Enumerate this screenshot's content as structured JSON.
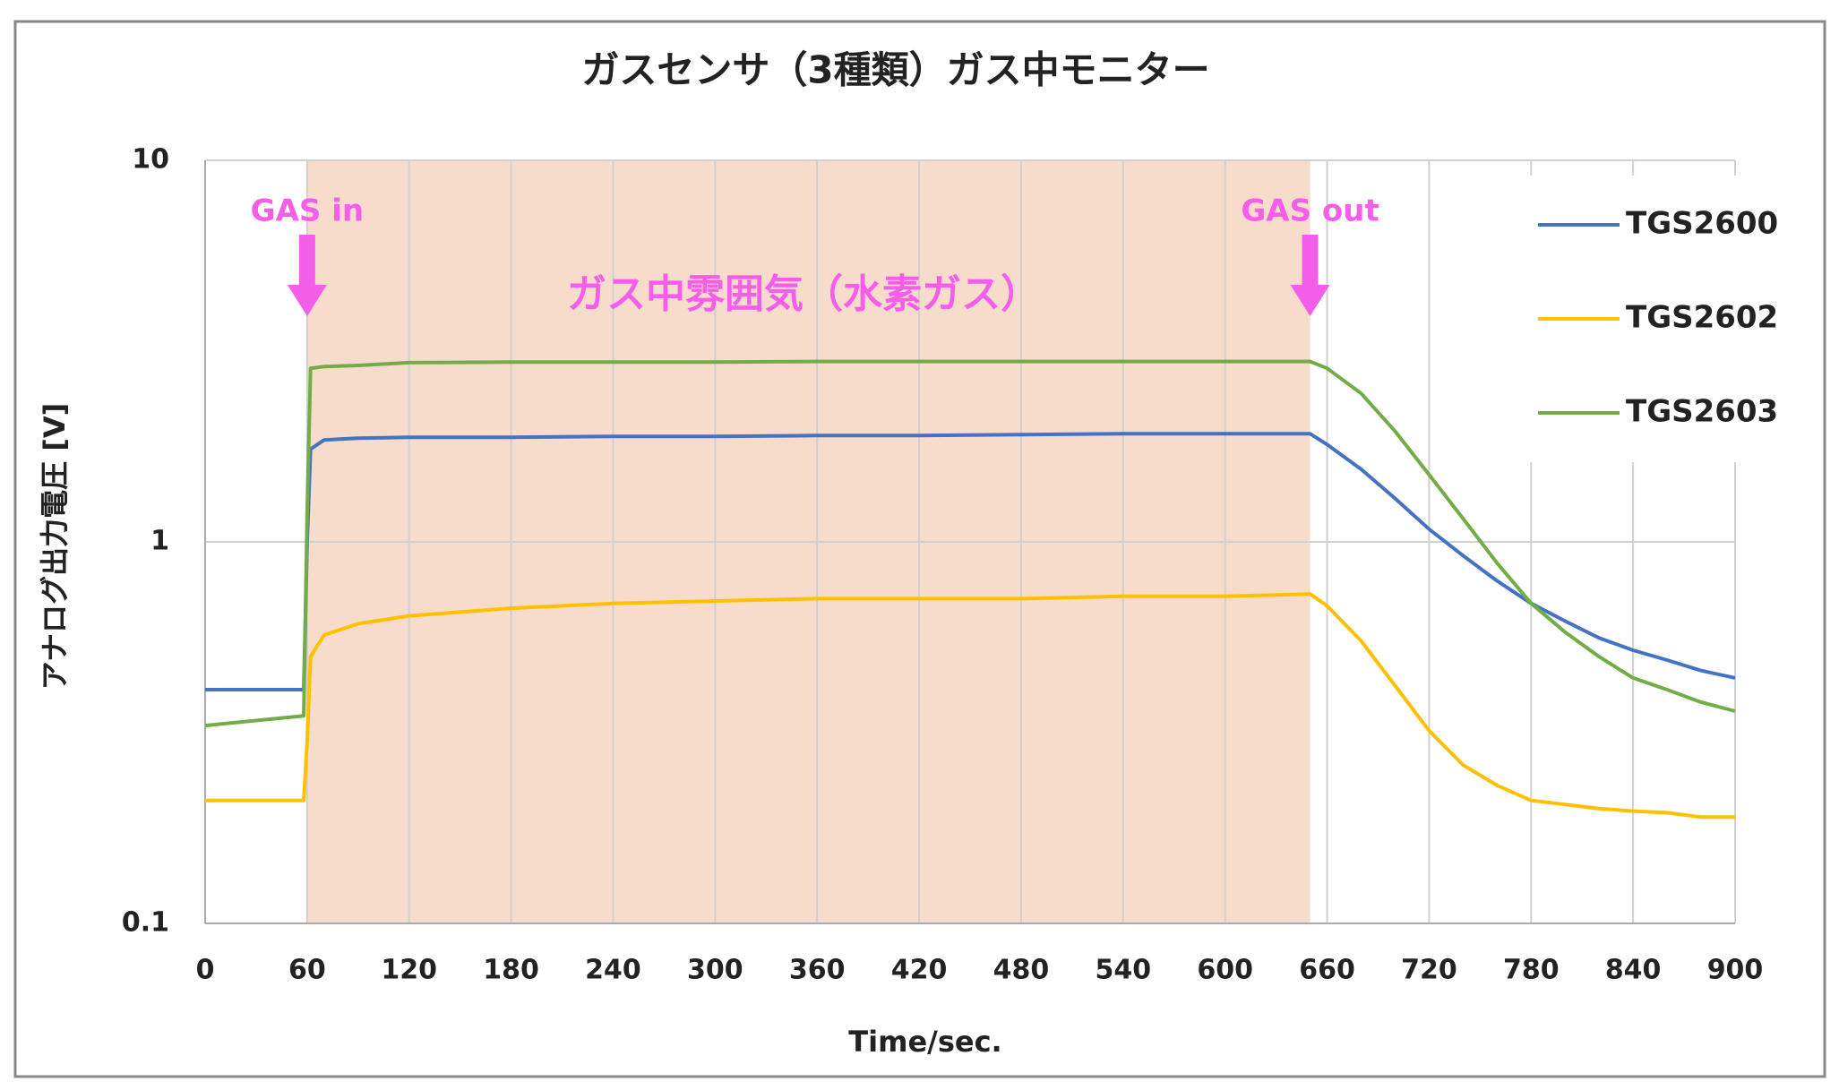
{
  "chart_data": {
    "type": "line",
    "title": "ガスセンサ（3種類）ガス中モニター",
    "x_label": "Time/sec.",
    "y_label": "アナログ出力電圧 [V]",
    "log_y": true,
    "grid": true,
    "legend_position": "upper right",
    "xlim": [
      0,
      900
    ],
    "xticks": [
      0,
      60,
      120,
      180,
      240,
      300,
      360,
      420,
      480,
      540,
      600,
      660,
      720,
      780,
      840,
      900
    ],
    "ylim": [
      0.1,
      10
    ],
    "yticks": [
      0.1,
      1,
      10
    ],
    "shaded_region": {
      "x": [
        60,
        650
      ],
      "color": "#f8dccb"
    },
    "annotations": [
      {
        "text": "GAS in",
        "x": 60,
        "arrow": true
      },
      {
        "text": "GAS out",
        "x": 650,
        "arrow": true
      },
      {
        "text": "ガス中雰囲気（水素ガス）",
        "x": 352,
        "arrow": false
      }
    ],
    "annotation_color": "#f55ee8",
    "x": [
      0,
      58,
      60,
      62,
      70,
      90,
      120,
      180,
      240,
      300,
      360,
      420,
      480,
      540,
      600,
      650,
      660,
      680,
      700,
      720,
      740,
      760,
      780,
      800,
      820,
      840,
      860,
      880,
      900
    ],
    "series": [
      {
        "name": "TGS2600",
        "color": "#4472c4",
        "values": [
          0.41,
          0.41,
          1.0,
          1.75,
          1.85,
          1.87,
          1.88,
          1.88,
          1.89,
          1.89,
          1.9,
          1.9,
          1.91,
          1.92,
          1.92,
          1.92,
          1.8,
          1.55,
          1.3,
          1.08,
          0.92,
          0.79,
          0.69,
          0.62,
          0.56,
          0.52,
          0.49,
          0.46,
          0.44
        ]
      },
      {
        "name": "TGS2602",
        "color": "#ffc000",
        "values": [
          0.21,
          0.21,
          0.3,
          0.5,
          0.57,
          0.61,
          0.64,
          0.67,
          0.69,
          0.7,
          0.71,
          0.71,
          0.71,
          0.72,
          0.72,
          0.73,
          0.68,
          0.55,
          0.42,
          0.32,
          0.26,
          0.23,
          0.21,
          0.205,
          0.2,
          0.197,
          0.195,
          0.19,
          0.19
        ]
      },
      {
        "name": "TGS2603",
        "color": "#70ad47",
        "values": [
          0.33,
          0.35,
          1.2,
          2.85,
          2.88,
          2.9,
          2.95,
          2.96,
          2.96,
          2.96,
          2.97,
          2.97,
          2.97,
          2.97,
          2.97,
          2.97,
          2.85,
          2.45,
          1.95,
          1.5,
          1.15,
          0.88,
          0.69,
          0.58,
          0.5,
          0.44,
          0.41,
          0.38,
          0.36
        ]
      }
    ]
  }
}
